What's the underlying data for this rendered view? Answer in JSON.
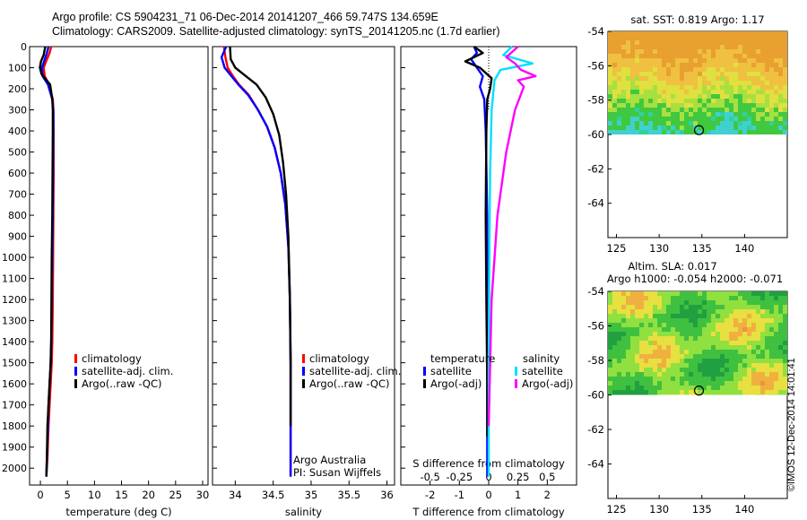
{
  "header": {
    "title_line1": "Argo profile: CS 5904231_71 06-Dec-2014 20141207_466 59.747S 134.659E",
    "title_line2": "Climatology: CARS2009. Satellite-adjusted climatology: synTS_20141205.nc (1.7d earlier)"
  },
  "stamp": "©IMOS 12-Dec-2014 14:01:41",
  "colors": {
    "climatology": "#ff0000",
    "satellite": "#0000ff",
    "argo": "#000000",
    "salinity_satellite": "#00e0ff",
    "salinity_argo": "#ff00ff"
  },
  "chart_data": [
    {
      "id": "temperature",
      "type": "line",
      "xlabel": "temperature (deg C)",
      "ylabel": "",
      "xlim": [
        -2,
        31
      ],
      "ylim": [
        2080,
        0
      ],
      "xticks": [
        0,
        5,
        10,
        15,
        20,
        25,
        30
      ],
      "yticks": [
        0,
        100,
        200,
        300,
        400,
        500,
        600,
        700,
        800,
        900,
        1000,
        1100,
        1200,
        1300,
        1400,
        1500,
        1600,
        1700,
        1800,
        1900,
        2000
      ],
      "legend": {
        "placement": "middle-right",
        "entries": [
          "climatology",
          "satellite-adj. clim.",
          "Argo(..raw -QC)"
        ]
      },
      "series": [
        {
          "name": "climatology",
          "color": "#ff0000",
          "x": [
            2.0,
            1.7,
            1.2,
            0.6,
            0.8,
            1.6,
            2.3,
            2.4,
            2.45,
            2.45,
            2.4,
            2.35,
            2.3,
            2.2,
            2.1,
            1.9,
            1.7,
            1.5,
            1.3,
            1.1
          ],
          "y": [
            0,
            30,
            60,
            100,
            140,
            180,
            250,
            300,
            400,
            600,
            800,
            1000,
            1200,
            1400,
            1500,
            1600,
            1700,
            1800,
            1950,
            2040
          ]
        },
        {
          "name": "satellite-adj. clim.",
          "color": "#0000ff",
          "x": [
            1.5,
            1.2,
            0.8,
            0.3,
            0.4,
            1.4,
            2.2,
            2.4,
            2.4,
            2.35,
            2.3,
            2.2,
            2.1,
            2.0,
            1.9,
            1.7,
            1.5,
            1.4,
            1.2,
            1.1
          ],
          "y": [
            0,
            30,
            60,
            100,
            140,
            180,
            250,
            300,
            400,
            600,
            800,
            1000,
            1200,
            1400,
            1500,
            1600,
            1700,
            1800,
            1950,
            2040
          ]
        },
        {
          "name": "Argo(..raw -QC)",
          "color": "#000000",
          "x": [
            0.9,
            0.6,
            0.1,
            -0.1,
            0.2,
            1.8,
            2.2,
            2.3,
            2.3,
            2.25,
            2.2,
            2.1,
            2.05,
            2.0,
            1.9,
            1.7,
            1.5,
            1.3,
            1.2,
            1.1
          ],
          "y": [
            0,
            40,
            70,
            100,
            130,
            180,
            250,
            300,
            400,
            600,
            800,
            1000,
            1200,
            1400,
            1500,
            1600,
            1700,
            1800,
            1950,
            2040
          ]
        }
      ]
    },
    {
      "id": "salinity",
      "type": "line",
      "xlabel": "salinity",
      "xlim": [
        33.7,
        36.1
      ],
      "ylim": [
        2080,
        0
      ],
      "xticks": [
        34,
        34.5,
        35,
        35.5,
        36
      ],
      "legend": {
        "placement": "middle-right",
        "entries": [
          "climatology",
          "satellite-adj. clim.",
          "Argo(..raw -QC)"
        ]
      },
      "annotation": [
        "Argo Australia",
        "PI: Susan Wijffels"
      ],
      "series": [
        {
          "name": "climatology",
          "color": "#ff0000",
          "x": [
            33.85,
            33.87,
            33.9,
            33.97,
            34.05,
            34.18,
            34.3,
            34.42,
            34.52,
            34.6,
            34.66,
            34.7,
            34.72,
            34.73,
            34.73,
            34.73
          ],
          "y": [
            0,
            50,
            100,
            140,
            180,
            230,
            300,
            380,
            480,
            600,
            750,
            950,
            1200,
            1500,
            1800,
            2040
          ]
        },
        {
          "name": "satellite-adj. clim.",
          "color": "#0000ff",
          "x": [
            33.88,
            33.82,
            33.86,
            33.95,
            34.04,
            34.17,
            34.3,
            34.42,
            34.52,
            34.6,
            34.66,
            34.7,
            34.72,
            34.73,
            34.73,
            34.73
          ],
          "y": [
            0,
            50,
            100,
            140,
            180,
            230,
            300,
            380,
            480,
            600,
            750,
            950,
            1200,
            1500,
            1800,
            2040
          ]
        },
        {
          "name": "Argo(..raw -QC)",
          "color": "#000000",
          "x": [
            33.93,
            33.94,
            34.0,
            34.14,
            34.28,
            34.4,
            34.5,
            34.58,
            34.63,
            34.67,
            34.7,
            34.72,
            34.73,
            34.73
          ],
          "y": [
            0,
            60,
            100,
            140,
            180,
            240,
            320,
            420,
            550,
            700,
            900,
            1200,
            1500,
            1800
          ]
        }
      ]
    },
    {
      "id": "difference",
      "type": "line",
      "xlabel": "T difference from climatology",
      "top_label": "S difference from climatology",
      "xlim": [
        -3.0,
        3.0
      ],
      "ylim": [
        2080,
        0
      ],
      "xticks": [
        -2,
        -1,
        0,
        1,
        2
      ],
      "top_ticks": [
        "-0.5",
        "-0.25",
        "0",
        "0.25",
        "0.5"
      ],
      "legend": {
        "placement": "middle",
        "columns": [
          {
            "heading": "temperature",
            "entries": [
              "satellite",
              "Argo(-adj)"
            ]
          },
          {
            "heading": "salinity",
            "entries": [
              "satellite",
              "Argo(-adj)"
            ]
          }
        ]
      },
      "series": [
        {
          "name": "temperature satellite",
          "color": "#0000ff",
          "x": [
            -0.5,
            -0.4,
            -0.6,
            -0.4,
            -0.2,
            -0.3,
            -0.15,
            -0.1,
            -0.05,
            -0.05,
            -0.05,
            -0.05
          ],
          "y": [
            0,
            30,
            60,
            100,
            140,
            190,
            250,
            400,
            800,
            1200,
            1600,
            2040
          ]
        },
        {
          "name": "temperature Argo(-adj)",
          "color": "#000000",
          "x": [
            -0.5,
            -0.2,
            -0.8,
            -0.3,
            0.1,
            0.05,
            -0.05,
            -0.08,
            -0.1,
            -0.08,
            -0.05,
            -0.05
          ],
          "y": [
            0,
            30,
            70,
            100,
            150,
            200,
            250,
            400,
            800,
            1200,
            1600,
            1850
          ]
        },
        {
          "name": "salinity satellite",
          "color": "#00e0ff",
          "x": [
            0.8,
            0.5,
            1.5,
            0.4,
            0.2,
            0.1,
            0.05,
            0.02,
            0.0,
            0.0
          ],
          "y": [
            0,
            40,
            80,
            110,
            160,
            300,
            600,
            1000,
            1500,
            2040
          ]
        },
        {
          "name": "salinity Argo(-adj)",
          "color": "#ff00ff",
          "x": [
            1.0,
            0.6,
            0.9,
            1.1,
            1.6,
            1.0,
            1.2,
            0.9,
            0.6,
            0.3,
            0.1,
            0.0
          ],
          "y": [
            0,
            50,
            80,
            110,
            140,
            160,
            190,
            300,
            500,
            800,
            1200,
            1800
          ]
        }
      ]
    },
    {
      "id": "sst-map",
      "type": "heatmap",
      "title": "sat. SST: 0.819  Argo: 1.17",
      "xlim": [
        124,
        145
      ],
      "ylim": [
        -66,
        -54
      ],
      "xticks": [
        125,
        130,
        135,
        140
      ],
      "yticks": [
        -54,
        -56,
        -58,
        -60,
        -62,
        -64
      ],
      "data_extent_lat": [
        -60,
        -54
      ],
      "float_position": {
        "lon": 134.659,
        "lat": -59.747
      }
    },
    {
      "id": "sla-map",
      "type": "heatmap",
      "title": "Altim. SLA: 0.017",
      "subtitle": "Argo h1000: -0.054 h2000: -0.071",
      "xlim": [
        124,
        145
      ],
      "ylim": [
        -66,
        -54
      ],
      "xticks": [
        125,
        130,
        135,
        140
      ],
      "yticks": [
        -54,
        -56,
        -58,
        -60,
        -62,
        -64
      ],
      "data_extent_lat": [
        -60,
        -54
      ],
      "float_position": {
        "lon": 134.659,
        "lat": -59.747
      }
    }
  ]
}
